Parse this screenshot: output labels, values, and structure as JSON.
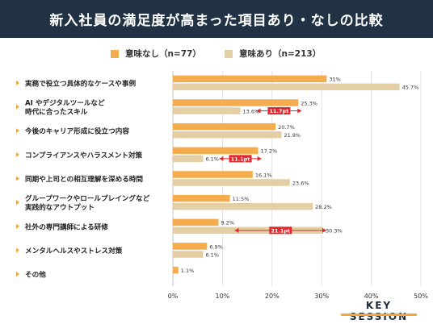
{
  "header": {
    "title": "新入社員の満足度が高まった項目あり・なしの比較"
  },
  "legend": {
    "series_a": "意味なし（n=77）",
    "series_b": "意味あり（n=213）"
  },
  "colors": {
    "series_a": "#F5AC4E",
    "series_b": "#E3CEA6",
    "diff": "#E0282E",
    "header": "#203243",
    "marker": "#F0A63A"
  },
  "brand": {
    "name": "KEY SESSION"
  },
  "chart_data": {
    "type": "bar",
    "orientation": "horizontal",
    "title": "新入社員の満足度が高まった項目あり・なしの比較",
    "categories": [
      [
        "実務で役立つ具体的なケースや事例"
      ],
      [
        "AI やデジタルツールなど",
        "時代に合ったスキル"
      ],
      [
        "今後のキャリア形成に役立つ内容"
      ],
      [
        "コンプライアンスやハラスメント対策"
      ],
      [
        "同期や上司との相互理解を深める時間"
      ],
      [
        "グループワークやロールプレイングなど",
        "実践的なアウトプット"
      ],
      [
        "社外の専門講師による研修"
      ],
      [
        "メンタルヘルスやストレス対策"
      ],
      [
        "その他"
      ]
    ],
    "series": [
      {
        "name": "意味なし（n=77）",
        "values": [
          31,
          25.3,
          20.7,
          17.2,
          16.1,
          11.5,
          9.2,
          6.9,
          1.1
        ],
        "labels": [
          "31%",
          "25.3%",
          "20.7%",
          "17.2%",
          "16.1%",
          "11.5%",
          "9.2%",
          "6.9%",
          "1.1%"
        ]
      },
      {
        "name": "意味あり（n=213）",
        "values": [
          45.7,
          13.6,
          21.9,
          6.1,
          23.6,
          28.2,
          30.3,
          6.1,
          null
        ],
        "labels": [
          "45.7%",
          "13.6%",
          "21.9%",
          "6.1%",
          "23.6%",
          "28.2%",
          "30.3%",
          "6.1%",
          ""
        ]
      }
    ],
    "annotations": [
      {
        "category_index": 1,
        "label": "11.7pt"
      },
      {
        "category_index": 3,
        "label": "11.1pt"
      },
      {
        "category_index": 6,
        "label": "21.1pt"
      }
    ],
    "xlim": [
      0,
      50
    ],
    "xticks": [
      "0%",
      "10%",
      "20%",
      "30%",
      "40%",
      "50%"
    ],
    "grid": true
  }
}
